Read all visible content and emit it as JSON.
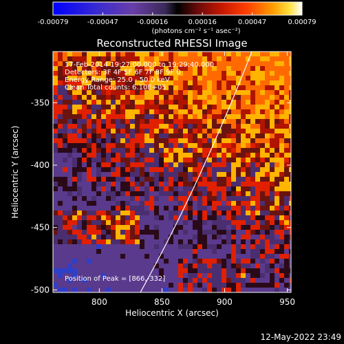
{
  "colorbar": {
    "tick_labels": [
      "-0.00079",
      "-0.00047",
      "-0.00016",
      "0.00016",
      "0.00047",
      "0.00079"
    ],
    "units_label": "(photons cm⁻² s⁻¹ asec⁻²)",
    "colors": [
      "#0000ff",
      "#3a2bd0",
      "#6a3ea8",
      "#5a3a78",
      "#000000",
      "#5a0a0a",
      "#b01800",
      "#ff3000",
      "#ff8c00",
      "#ffd000",
      "#ffffff"
    ]
  },
  "title": "Reconstructed RHESSI Image",
  "info": {
    "line1": "17-Feb-2014 19:27:00.000 to 19:29:40.000",
    "line2": "Detectors: 3F 4F 5F 6F 7F 8F 9F 0",
    "line3": "Energy Range: 25.0 - 50.0 keV",
    "line4": "Clean     Total counts: 6.10E+05"
  },
  "peak_label": "Position of Peak = [866,-332]",
  "axes": {
    "xlabel": "Heliocentric X (arcsec)",
    "ylabel": "Heliocentric Y (arcsec)",
    "xticks": [
      "800",
      "850",
      "900",
      "950"
    ],
    "yticks": [
      "-350",
      "-400",
      "-450",
      "-500"
    ]
  },
  "timestamp": "12-May-2022 23:49"
}
